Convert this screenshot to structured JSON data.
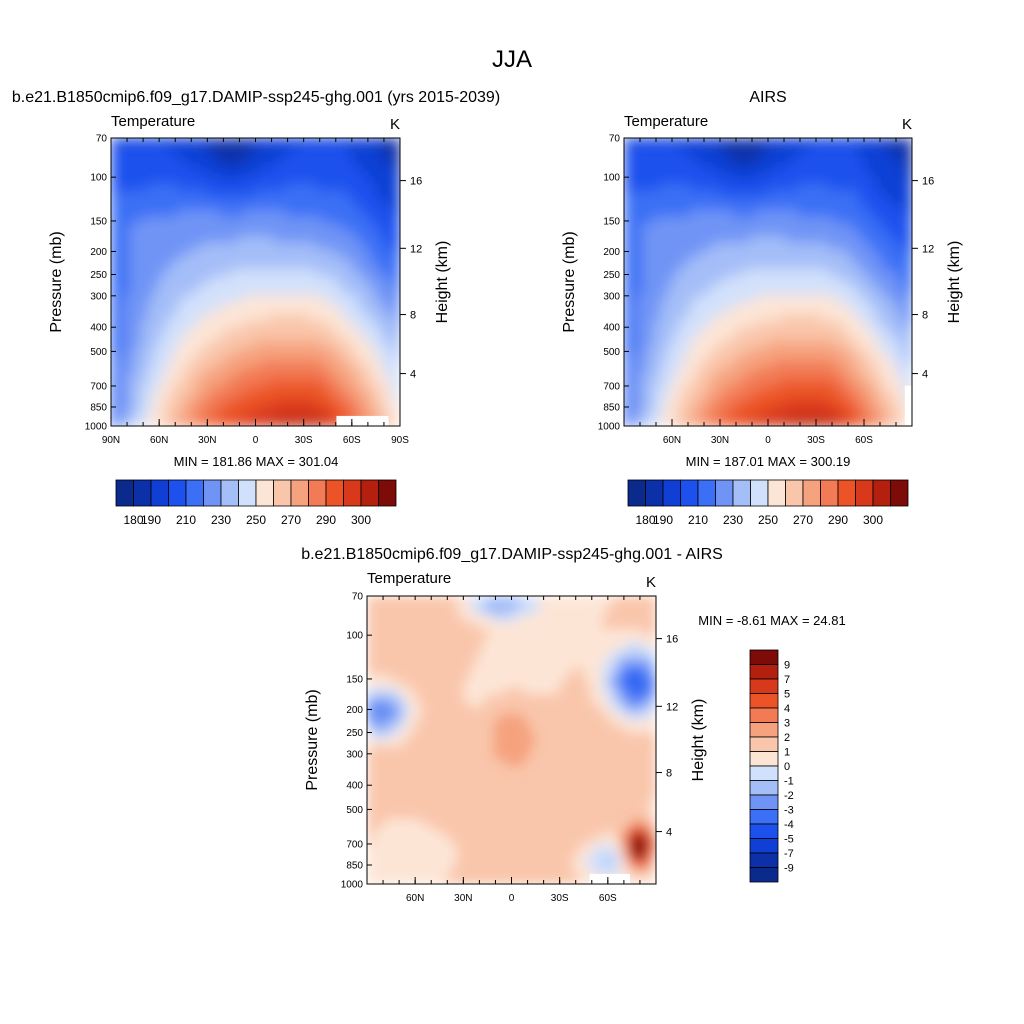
{
  "page": {
    "title": "JJA"
  },
  "colors": {
    "temp_bar": [
      "#0a2a8c",
      "#0b30a8",
      "#0f3fd4",
      "#1c51ee",
      "#3b6ff5",
      "#6f94f6",
      "#a4bef8",
      "#d2e1fb",
      "#fde5d6",
      "#f9c6ab",
      "#f6a27e",
      "#f27a55",
      "#ec5428",
      "#d8391b",
      "#b4200f",
      "#7d0b08"
    ],
    "diff_bar": [
      "#7d0b08",
      "#b4200f",
      "#d8391b",
      "#ec5428",
      "#f27a55",
      "#f6a27e",
      "#f9c6ab",
      "#fde5d6",
      "#d2e1fb",
      "#a4bef8",
      "#6f94f6",
      "#3b6ff5",
      "#1c51ee",
      "#0f3fd4",
      "#0b30a8",
      "#0a2a8c"
    ]
  },
  "chart_data": [
    {
      "type": "heatmap",
      "panel": "model",
      "title": "b.e21.B1850cmip6.f09_g17.DAMIP-ssp245-ghg.001 (yrs 2015-2039)",
      "left_label": "Temperature",
      "unit": "K",
      "ylabel": "Pressure (mb)",
      "ylabel_right": "Height (km)",
      "pressure_ticks": [
        "70",
        "100",
        "150",
        "200",
        "250",
        "300",
        "400",
        "500",
        "700",
        "850",
        "1000"
      ],
      "height_ticks": [
        "16",
        "12",
        "8",
        "4"
      ],
      "x_ticks": [
        "90N",
        "60N",
        "30N",
        "0",
        "30S",
        "60S",
        "90S"
      ],
      "min_max": "MIN = 181.86  MAX = 301.04",
      "colorbar_labels": [
        "180",
        "190",
        "210",
        "230",
        "250",
        "270",
        "290",
        "300"
      ],
      "value_range": [
        181.86,
        301.04
      ]
    },
    {
      "type": "heatmap",
      "panel": "obs",
      "title": "AIRS",
      "left_label": "Temperature",
      "unit": "K",
      "ylabel": "Pressure (mb)",
      "ylabel_right": "Height (km)",
      "pressure_ticks": [
        "70",
        "100",
        "150",
        "200",
        "250",
        "300",
        "400",
        "500",
        "700",
        "850",
        "1000"
      ],
      "height_ticks": [
        "16",
        "12",
        "8",
        "4"
      ],
      "x_ticks": [
        "60N",
        "30N",
        "0",
        "30S",
        "60S"
      ],
      "min_max": "MIN = 187.01  MAX = 300.19",
      "colorbar_labels": [
        "180",
        "190",
        "210",
        "230",
        "250",
        "270",
        "290",
        "300"
      ],
      "value_range": [
        187.01,
        300.19
      ]
    },
    {
      "type": "heatmap",
      "panel": "difference",
      "title": "b.e21.B1850cmip6.f09_g17.DAMIP-ssp245-ghg.001 - AIRS",
      "left_label": "Temperature",
      "unit": "K",
      "ylabel": "Pressure (mb)",
      "ylabel_right": "Height (km)",
      "pressure_ticks": [
        "70",
        "100",
        "150",
        "200",
        "250",
        "300",
        "400",
        "500",
        "700",
        "850",
        "1000"
      ],
      "height_ticks": [
        "16",
        "12",
        "8",
        "4"
      ],
      "x_ticks": [
        "60N",
        "30N",
        "0",
        "30S",
        "60S"
      ],
      "min_max": "MIN =  -8.61  MAX =  24.81",
      "colorbar_labels": [
        "9",
        "7",
        "5",
        "4",
        "3",
        "2",
        "1",
        "0",
        "-1",
        "-2",
        "-3",
        "-4",
        "-5",
        "-7",
        "-9"
      ],
      "value_range": [
        -8.61,
        24.81
      ]
    }
  ]
}
